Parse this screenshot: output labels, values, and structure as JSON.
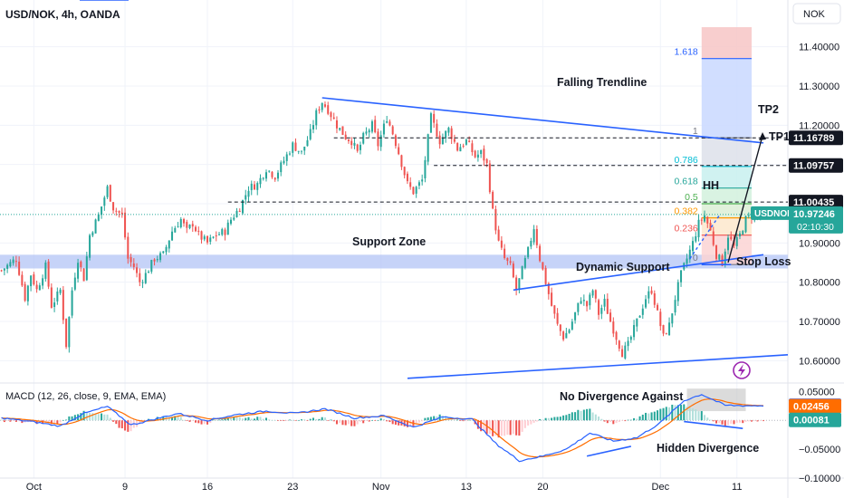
{
  "header": {
    "symbol_title": "USD/NOK, 4h, OANDA",
    "currency_button": "NOK"
  },
  "colors": {
    "bull": "#26a69a",
    "bear": "#ef5350",
    "trend": "#2962ff",
    "support_zone": "#b3c4f5",
    "macd_line": "#2962ff",
    "signal_line": "#ff6d00",
    "price_badge": "#26a69a",
    "dark_badge": "#131722"
  },
  "annotations": {
    "falling_trendline": "Falling Trendline",
    "support_zone": "Support Zone",
    "dynamic_support": "Dynamic Support",
    "stop_loss": "Stop Loss",
    "hh": "HH",
    "tp1": "TP1",
    "tp2": "TP2",
    "no_divergence": "No Divergence Against",
    "hidden_divergence": "Hidden Divergence"
  },
  "fib_levels": [
    {
      "label": "1.618",
      "value": 11.37,
      "color": "#2962ff"
    },
    {
      "label": "1",
      "value": 11.168,
      "color": "#787b86"
    },
    {
      "label": "0.786",
      "value": 11.095,
      "color": "#00bcd4"
    },
    {
      "label": "0.618",
      "value": 11.04,
      "color": "#26a69a"
    },
    {
      "label": "0.5",
      "value": 11.0,
      "color": "#4caf50"
    },
    {
      "label": "0.382",
      "value": 10.964,
      "color": "#ff9800"
    },
    {
      "label": "0.236",
      "value": 10.92,
      "color": "#ef5350"
    },
    {
      "label": "0",
      "value": 10.845,
      "color": "#787b86"
    }
  ],
  "price_labels": [
    {
      "text": "11.16789",
      "value": 11.16789,
      "style": "dark"
    },
    {
      "text": "11.09757",
      "value": 11.09757,
      "style": "dark"
    },
    {
      "text": "11.00435",
      "value": 11.00435,
      "style": "dark"
    }
  ],
  "current_price": {
    "ticker": "USDNOK",
    "price": "10.97246",
    "countdown": "02:10:30",
    "value": 10.97246
  },
  "macd": {
    "title": "MACD (12, 26, close, 9, EMA, EMA)",
    "labels": [
      {
        "text": "0.02537",
        "value": 0.02537,
        "color": "#2962ff"
      },
      {
        "text": "0.02456",
        "value": 0.02456,
        "color": "#ff6d00"
      },
      {
        "text": "0.00081",
        "value": 0.00081,
        "color": "#26a69a"
      }
    ],
    "y_ticks": [
      {
        "text": "0.05000",
        "value": 0.05
      },
      {
        "text": "0.00000",
        "value": 0.0
      },
      {
        "text": "−0.05000",
        "value": -0.05
      },
      {
        "text": "−0.10000",
        "value": -0.1
      }
    ],
    "ylim": [
      -0.1,
      0.06
    ]
  },
  "chart_data": {
    "type": "candlestick",
    "title": "USD/NOK, 4h, OANDA",
    "ylim": [
      10.55,
      11.45
    ],
    "y_ticks": [
      "11.40000",
      "11.30000",
      "11.20000",
      "11.10000",
      "11.00000",
      "10.90000",
      "10.80000",
      "10.70000",
      "10.60000"
    ],
    "y_tick_values": [
      11.4,
      11.3,
      11.2,
      11.1,
      11.0,
      10.9,
      10.8,
      10.7,
      10.6
    ],
    "x_ticks": [
      "Oct",
      "9",
      "16",
      "23",
      "Nov",
      "13",
      "20",
      "Dec",
      "11"
    ],
    "x_tick_index": [
      11,
      42,
      70,
      99,
      129,
      158,
      184,
      224,
      250
    ],
    "n_bars": 260,
    "anchors": [
      [
        0,
        10.83
      ],
      [
        5,
        10.86
      ],
      [
        8,
        10.76
      ],
      [
        10,
        10.82
      ],
      [
        12,
        10.78
      ],
      [
        15,
        10.84
      ],
      [
        17,
        10.74
      ],
      [
        20,
        10.78
      ],
      [
        22,
        10.64
      ],
      [
        24,
        10.78
      ],
      [
        26,
        10.86
      ],
      [
        28,
        10.81
      ],
      [
        30,
        10.92
      ],
      [
        33,
        10.97
      ],
      [
        36,
        11.04
      ],
      [
        38,
        10.99
      ],
      [
        41,
        10.97
      ],
      [
        43,
        10.86
      ],
      [
        45,
        10.84
      ],
      [
        47,
        10.8
      ],
      [
        49,
        10.82
      ],
      [
        52,
        10.86
      ],
      [
        55,
        10.87
      ],
      [
        58,
        10.93
      ],
      [
        61,
        10.96
      ],
      [
        63,
        10.93
      ],
      [
        65,
        10.95
      ],
      [
        67,
        10.92
      ],
      [
        70,
        10.9
      ],
      [
        73,
        10.92
      ],
      [
        76,
        10.93
      ],
      [
        78,
        10.96
      ],
      [
        81,
        10.99
      ],
      [
        84,
        11.04
      ],
      [
        87,
        11.05
      ],
      [
        90,
        11.09
      ],
      [
        93,
        11.07
      ],
      [
        96,
        11.11
      ],
      [
        99,
        11.15
      ],
      [
        102,
        11.13
      ],
      [
        105,
        11.18
      ],
      [
        107,
        11.23
      ],
      [
        109,
        11.26
      ],
      [
        111,
        11.24
      ],
      [
        114,
        11.2
      ],
      [
        117,
        11.17
      ],
      [
        119,
        11.16
      ],
      [
        121,
        11.13
      ],
      [
        123,
        11.17
      ],
      [
        126,
        11.2
      ],
      [
        128,
        11.15
      ],
      [
        131,
        11.22
      ],
      [
        133,
        11.18
      ],
      [
        135,
        11.13
      ],
      [
        138,
        11.05
      ],
      [
        140,
        11.03
      ],
      [
        143,
        11.06
      ],
      [
        146,
        11.22
      ],
      [
        149,
        11.16
      ],
      [
        152,
        11.19
      ],
      [
        155,
        11.14
      ],
      [
        158,
        11.16
      ],
      [
        161,
        11.12
      ],
      [
        163,
        11.13
      ],
      [
        165,
        11.1
      ],
      [
        167,
        10.98
      ],
      [
        169,
        10.9
      ],
      [
        171,
        10.86
      ],
      [
        173,
        10.84
      ],
      [
        175,
        10.78
      ],
      [
        177,
        10.83
      ],
      [
        179,
        10.88
      ],
      [
        181,
        10.94
      ],
      [
        183,
        10.86
      ],
      [
        185,
        10.8
      ],
      [
        187,
        10.74
      ],
      [
        189,
        10.69
      ],
      [
        191,
        10.66
      ],
      [
        193,
        10.68
      ],
      [
        195,
        10.72
      ],
      [
        197,
        10.76
      ],
      [
        199,
        10.74
      ],
      [
        201,
        10.78
      ],
      [
        203,
        10.72
      ],
      [
        205,
        10.75
      ],
      [
        207,
        10.7
      ],
      [
        209,
        10.66
      ],
      [
        211,
        10.62
      ],
      [
        213,
        10.64
      ],
      [
        215,
        10.68
      ],
      [
        217,
        10.72
      ],
      [
        219,
        10.76
      ],
      [
        221,
        10.78
      ],
      [
        223,
        10.72
      ],
      [
        225,
        10.66
      ],
      [
        227,
        10.69
      ],
      [
        229,
        10.76
      ],
      [
        231,
        10.82
      ],
      [
        233,
        10.86
      ],
      [
        235,
        10.9
      ],
      [
        237,
        10.95
      ],
      [
        239,
        10.97
      ],
      [
        241,
        10.93
      ],
      [
        243,
        10.87
      ],
      [
        245,
        10.85
      ],
      [
        247,
        10.92
      ],
      [
        249,
        10.89
      ],
      [
        251,
        10.92
      ],
      [
        253,
        10.96
      ],
      [
        255,
        10.97
      ]
    ],
    "macd_anchors": [
      [
        0,
        0.004
      ],
      [
        10,
        -0.002
      ],
      [
        20,
        -0.01
      ],
      [
        28,
        0.012
      ],
      [
        36,
        0.024
      ],
      [
        44,
        -0.008
      ],
      [
        52,
        0.002
      ],
      [
        60,
        0.012
      ],
      [
        70,
        0.0
      ],
      [
        80,
        0.01
      ],
      [
        90,
        0.016
      ],
      [
        100,
        0.012
      ],
      [
        110,
        0.02
      ],
      [
        120,
        0.004
      ],
      [
        130,
        0.008
      ],
      [
        140,
        -0.012
      ],
      [
        150,
        0.006
      ],
      [
        160,
        0.002
      ],
      [
        168,
        -0.04
      ],
      [
        176,
        -0.07
      ],
      [
        184,
        -0.062
      ],
      [
        192,
        -0.05
      ],
      [
        200,
        -0.022
      ],
      [
        208,
        -0.036
      ],
      [
        216,
        -0.03
      ],
      [
        224,
        -0.004
      ],
      [
        232,
        0.034
      ],
      [
        238,
        0.045
      ],
      [
        246,
        0.026
      ],
      [
        255,
        0.0254
      ]
    ]
  }
}
